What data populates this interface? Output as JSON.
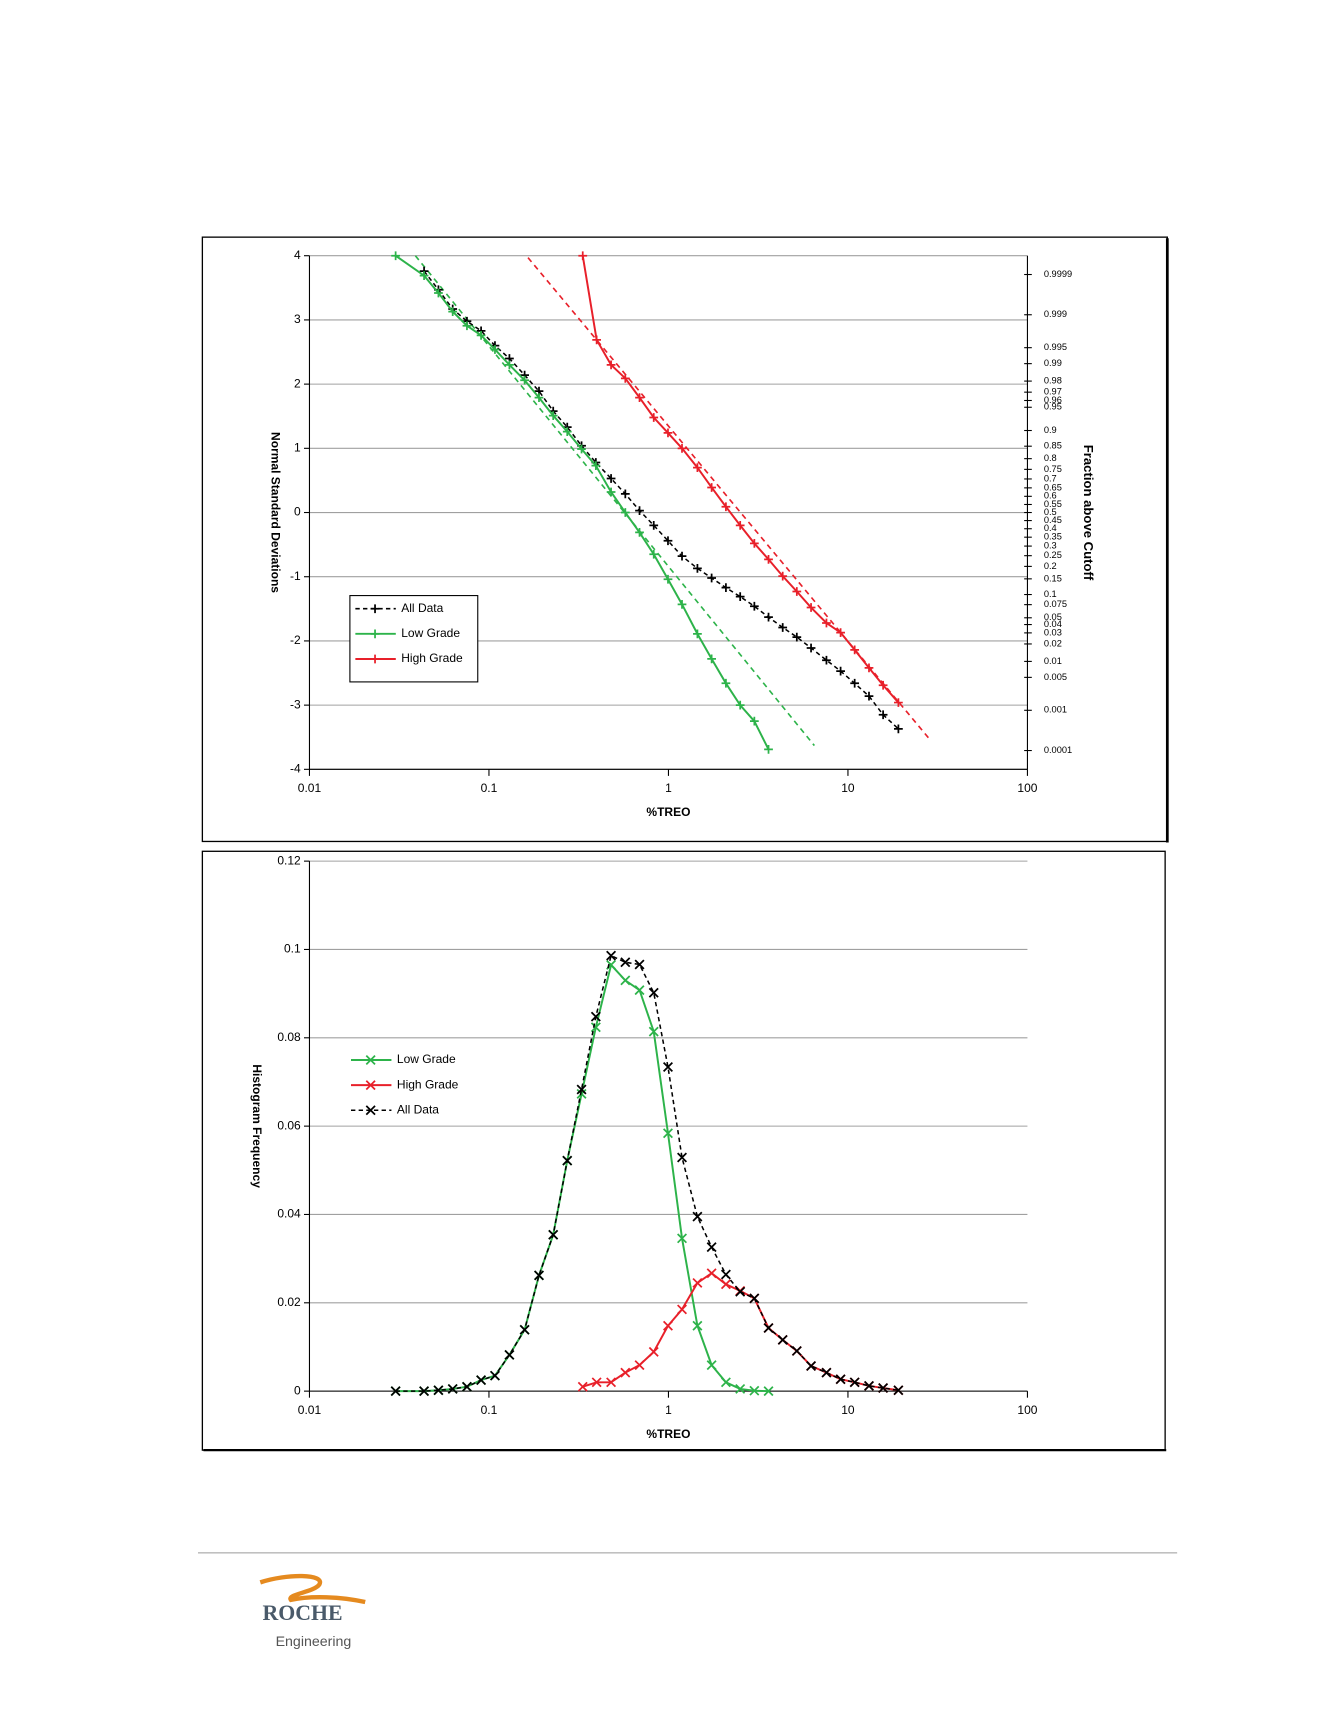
{
  "chart_data": [
    {
      "type": "line",
      "x_label": "%TREO",
      "y_label": "Normal Standard Deviations",
      "y2_label": "Fraction above Cutoff",
      "xscale": "log",
      "xlim": [
        0.01,
        100
      ],
      "xticks": [
        0.01,
        0.1,
        1,
        10,
        100
      ],
      "ylim": [
        -4,
        4
      ],
      "yticks": [
        -4,
        -3,
        -2,
        -1,
        0,
        1,
        2,
        3,
        4
      ],
      "grid": true,
      "y2scale": "probit",
      "y2lim": [
        3e-05,
        0.99997
      ],
      "y2ticks": [
        0.0001,
        0.001,
        0.005,
        0.01,
        0.02,
        0.03,
        0.04,
        0.05,
        0.075,
        0.1,
        0.15,
        0.2,
        0.25,
        0.3,
        0.35,
        0.4,
        0.45,
        0.5,
        0.55,
        0.6,
        0.65,
        0.7,
        0.75,
        0.8,
        0.85,
        0.9,
        0.95,
        0.96,
        0.97,
        0.98,
        0.99,
        0.995,
        0.999,
        0.9999
      ],
      "legend": "center left",
      "legend_frame": true,
      "marker": "plus",
      "series": [
        {
          "name": "All Data",
          "color": "#000000",
          "dash": true,
          "x": [
            0.0435,
            0.0523,
            0.0628,
            0.0754,
            0.0904,
            0.108,
            0.13,
            0.158,
            0.19,
            0.228,
            0.273,
            0.328,
            0.394,
            0.479,
            0.575,
            0.69,
            0.828,
            0.994,
            1.19,
            1.45,
            1.74,
            2.09,
            2.51,
            3.01,
            3.61,
            4.33,
            5.19,
            6.23,
            7.59,
            9.1,
            10.9,
            13.1,
            15.7,
            19.1
          ],
          "values": [
            3.76,
            3.47,
            3.17,
            2.98,
            2.83,
            2.6,
            2.4,
            2.14,
            1.89,
            1.58,
            1.33,
            1.04,
            0.78,
            0.53,
            0.29,
            0.03,
            -0.2,
            -0.44,
            -0.68,
            -0.87,
            -1.02,
            -1.17,
            -1.31,
            -1.46,
            -1.63,
            -1.79,
            -1.94,
            -2.11,
            -2.3,
            -2.47,
            -2.66,
            -2.86,
            -3.15,
            -3.37
          ]
        },
        {
          "name": "Low Grade",
          "color": "#2db34a",
          "dash": false,
          "x": [
            0.0302,
            0.0435,
            0.0523,
            0.0628,
            0.0754,
            0.0904,
            0.108,
            0.13,
            0.158,
            0.19,
            0.228,
            0.273,
            0.328,
            0.394,
            0.479,
            0.575,
            0.69,
            0.828,
            0.994,
            1.19,
            1.45,
            1.74,
            2.09,
            2.51,
            3.01,
            3.61
          ],
          "values": [
            4,
            3.69,
            3.42,
            3.13,
            2.91,
            2.76,
            2.54,
            2.3,
            2.06,
            1.79,
            1.51,
            1.26,
            0.99,
            0.73,
            0.32,
            0,
            -0.31,
            -0.65,
            -1.04,
            -1.43,
            -1.89,
            -2.28,
            -2.66,
            -3,
            -3.25,
            -3.69
          ]
        },
        {
          "name": "High Grade",
          "color": "#e8202a",
          "dash": false,
          "x": [
            0.333,
            0.398,
            0.479,
            0.575,
            0.69,
            0.828,
            0.994,
            1.19,
            1.45,
            1.74,
            2.09,
            2.51,
            3.01,
            3.61,
            4.33,
            5.19,
            6.23,
            7.59,
            9.1,
            10.9,
            13.1,
            15.7,
            19.1
          ],
          "values": [
            4,
            2.69,
            2.3,
            2.09,
            1.79,
            1.48,
            1.24,
            1,
            0.7,
            0.39,
            0.09,
            -0.2,
            -0.48,
            -0.73,
            -0.99,
            -1.23,
            -1.48,
            -1.72,
            -1.87,
            -2.14,
            -2.42,
            -2.69,
            -2.96
          ]
        }
      ],
      "trendlines": [
        {
          "color": "#2db34a",
          "x": [
            0.0389,
            6.5
          ],
          "values": [
            4,
            -3.63
          ]
        },
        {
          "color": "#e8202a",
          "x": [
            0.165,
            28.3
          ],
          "values": [
            3.97,
            -3.52
          ]
        }
      ]
    },
    {
      "type": "line",
      "x_label": "%TREO",
      "y_label": "Histogram Frequency",
      "xscale": "log",
      "xlim": [
        0.01,
        100
      ],
      "xticks": [
        0.01,
        0.1,
        1,
        10,
        100
      ],
      "ylim": [
        0,
        0.12
      ],
      "yticks": [
        0,
        0.02,
        0.04,
        0.06,
        0.08,
        0.1,
        0.12
      ],
      "grid": true,
      "legend": "center left",
      "legend_frame": false,
      "marker": "x",
      "series": [
        {
          "name": "Low Grade",
          "color": "#2db34a",
          "dash": false,
          "x": [
            0.0302,
            0.0435,
            0.0523,
            0.0628,
            0.0754,
            0.0904,
            0.108,
            0.13,
            0.158,
            0.19,
            0.228,
            0.273,
            0.328,
            0.394,
            0.479,
            0.575,
            0.69,
            0.828,
            0.994,
            1.19,
            1.45,
            1.74,
            2.09,
            2.51,
            3.01,
            3.61
          ],
          "values": [
            0,
            0,
            0.0002,
            0.0005,
            0.001,
            0.0025,
            0.0035,
            0.0082,
            0.0139,
            0.0262,
            0.0354,
            0.0522,
            0.0673,
            0.0824,
            0.0965,
            0.093,
            0.0908,
            0.0814,
            0.0584,
            0.0346,
            0.0148,
            0.0059,
            0.002,
            0.0005,
            0.0001,
            0
          ]
        },
        {
          "name": "High Grade",
          "color": "#e8202a",
          "dash": false,
          "x": [
            0.333,
            0.398,
            0.479,
            0.575,
            0.69,
            0.828,
            0.994,
            1.19,
            1.45,
            1.74,
            2.09,
            2.51,
            3.01,
            3.61,
            4.33,
            5.19,
            6.23,
            7.59,
            9.1,
            10.9,
            13.1,
            15.7,
            19.1
          ],
          "values": [
            0.001,
            0.002,
            0.002,
            0.0042,
            0.0059,
            0.0089,
            0.0148,
            0.0185,
            0.0245,
            0.0267,
            0.0242,
            0.0227,
            0.021,
            0.0143,
            0.0116,
            0.0091,
            0.0057,
            0.0042,
            0.0027,
            0.002,
            0.0012,
            0.0007,
            0.0002
          ]
        },
        {
          "name": "All Data",
          "color": "#000000",
          "dash": true,
          "x": [
            0.0302,
            0.0435,
            0.0523,
            0.0628,
            0.0754,
            0.0904,
            0.108,
            0.13,
            0.158,
            0.19,
            0.228,
            0.273,
            0.328,
            0.394,
            0.479,
            0.575,
            0.69,
            0.828,
            0.994,
            1.19,
            1.45,
            1.74,
            2.09,
            2.51,
            3.01,
            3.61,
            4.33,
            5.19,
            6.23,
            7.59,
            9.1,
            10.9,
            13.1,
            15.7,
            19.1
          ],
          "values": [
            0,
            0,
            0.0002,
            0.0005,
            0.001,
            0.0025,
            0.0035,
            0.0082,
            0.0139,
            0.0262,
            0.0354,
            0.0522,
            0.0683,
            0.0848,
            0.0986,
            0.0971,
            0.0966,
            0.0902,
            0.0734,
            0.0529,
            0.0395,
            0.0326,
            0.0264,
            0.0225,
            0.021,
            0.0143,
            0.0116,
            0.0091,
            0.0057,
            0.0042,
            0.0027,
            0.002,
            0.0012,
            0.0007,
            0.0002
          ]
        }
      ]
    }
  ],
  "footer": {
    "logo": "ROCHE",
    "subtitle": "Engineering"
  }
}
